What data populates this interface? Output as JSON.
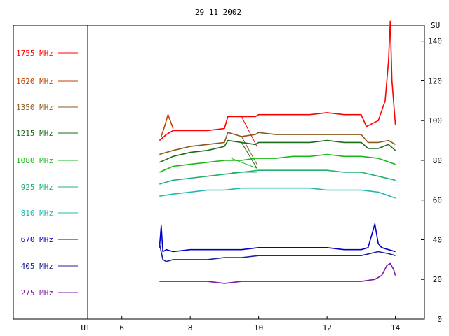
{
  "chart_data": {
    "type": "line",
    "title": "29 11 2002",
    "xlabel": "UT",
    "ylabel": "SU",
    "x_ticks": [
      6,
      8,
      10,
      12,
      14
    ],
    "y_ticks": [
      0,
      20,
      40,
      60,
      80,
      100,
      120,
      140
    ],
    "xlim": [
      5.0,
      14.85
    ],
    "ylim": [
      0,
      148
    ],
    "grid": false,
    "legend_position": "left",
    "series": [
      {
        "name": "1755 MHz",
        "color": "#ff0000",
        "x": [
          7.1,
          7.3,
          7.5,
          8.0,
          8.5,
          9.0,
          9.1,
          9.5,
          9.9,
          10.0,
          10.5,
          11.0,
          11.5,
          12.0,
          12.5,
          13.0,
          13.15,
          13.5,
          13.7,
          13.8,
          13.85,
          13.9,
          14.0
        ],
        "y": [
          90,
          93,
          95,
          95,
          95,
          96,
          102,
          102,
          102,
          103,
          103,
          103,
          103,
          104,
          103,
          103,
          97,
          100,
          110,
          130,
          150,
          120,
          98
        ]
      },
      {
        "name": "1620 MHz",
        "color": "#c04000",
        "x": [
          7.15,
          7.25,
          7.35,
          7.5
        ],
        "y": [
          92,
          97,
          103,
          96
        ]
      },
      {
        "name": "1350 MHz",
        "color": "#8b5a1a",
        "x": [
          7.1,
          7.5,
          8.0,
          8.5,
          9.0,
          9.1,
          9.5,
          9.9,
          10.0,
          10.5,
          11.0,
          11.5,
          12.0,
          12.5,
          13.0,
          13.2,
          13.5,
          13.8,
          14.0
        ],
        "y": [
          83,
          85,
          87,
          88,
          89,
          94,
          92,
          93,
          94,
          93,
          93,
          93,
          93,
          93,
          93,
          89,
          89,
          90,
          88
        ]
      },
      {
        "name": "1215 MHz",
        "color": "#1a6b1a",
        "x": [
          7.1,
          7.5,
          8.0,
          8.5,
          9.0,
          9.1,
          9.5,
          9.9,
          10.0,
          10.5,
          11.0,
          11.5,
          12.0,
          12.5,
          13.0,
          13.2,
          13.5,
          13.8,
          14.0
        ],
        "y": [
          79,
          82,
          84,
          85,
          87,
          90,
          89,
          88,
          89,
          89,
          89,
          89,
          90,
          89,
          89,
          86,
          86,
          88,
          85
        ]
      },
      {
        "name": "1080 MHz",
        "color": "#1ab81a",
        "x": [
          7.1,
          7.5,
          8.0,
          8.5,
          9.0,
          9.5,
          9.9,
          10.0,
          10.5,
          11.0,
          11.5,
          12.0,
          12.5,
          13.0,
          13.5,
          14.0
        ],
        "y": [
          74,
          77,
          78,
          79,
          80,
          80,
          81,
          81,
          81,
          82,
          82,
          83,
          82,
          82,
          81,
          78
        ]
      },
      {
        "name": "925 MHz",
        "color": "#20b070",
        "x": [
          7.1,
          7.5,
          8.0,
          8.5,
          9.0,
          9.5,
          10.0,
          10.5,
          11.0,
          11.5,
          12.0,
          12.5,
          13.0,
          13.5,
          14.0
        ],
        "y": [
          68,
          70,
          71,
          72,
          73,
          74,
          75,
          75,
          75,
          75,
          75,
          74,
          74,
          72,
          70
        ]
      },
      {
        "name": "810 MHz",
        "color": "#20b8b0",
        "x": [
          7.1,
          7.5,
          8.0,
          8.5,
          9.0,
          9.5,
          10.0,
          10.5,
          11.0,
          11.5,
          12.0,
          12.5,
          13.0,
          13.5,
          14.0
        ],
        "y": [
          62,
          63,
          64,
          65,
          65,
          66,
          66,
          66,
          66,
          66,
          65,
          65,
          65,
          64,
          61
        ]
      },
      {
        "name": "670 MHz",
        "color": "#0000cc",
        "x": [
          7.1,
          7.15,
          7.2,
          7.3,
          7.5,
          8.0,
          8.5,
          9.0,
          9.5,
          10.0,
          10.5,
          11.0,
          11.5,
          12.0,
          12.5,
          13.0,
          13.2,
          13.4,
          13.5,
          13.6,
          13.8,
          14.0
        ],
        "y": [
          36,
          47,
          34,
          35,
          34,
          35,
          35,
          35,
          35,
          36,
          36,
          36,
          36,
          36,
          35,
          35,
          36,
          48,
          38,
          36,
          35,
          34
        ]
      },
      {
        "name": "405 MHz",
        "color": "#20209a",
        "x": [
          7.1,
          7.2,
          7.3,
          7.5,
          8.0,
          8.5,
          9.0,
          9.5,
          10.0,
          10.5,
          11.0,
          11.5,
          12.0,
          12.5,
          13.0,
          13.5,
          13.8,
          14.0
        ],
        "y": [
          38,
          30,
          29,
          30,
          30,
          30,
          31,
          31,
          32,
          32,
          32,
          32,
          32,
          32,
          32,
          34,
          33,
          32
        ]
      },
      {
        "name": "275 MHz",
        "color": "#7a1aa8",
        "x": [
          7.1,
          7.5,
          8.0,
          8.5,
          9.0,
          9.5,
          10.0,
          10.5,
          11.0,
          11.5,
          12.0,
          12.5,
          13.0,
          13.4,
          13.6,
          13.75,
          13.85,
          13.95,
          14.0
        ],
        "y": [
          19,
          19,
          19,
          19,
          18,
          19,
          19,
          19,
          19,
          19,
          19,
          19,
          19,
          20,
          22,
          27,
          28,
          25,
          22
        ]
      }
    ]
  }
}
